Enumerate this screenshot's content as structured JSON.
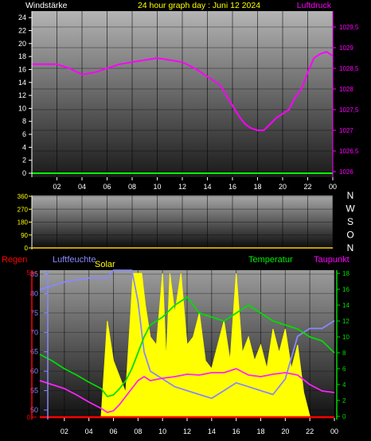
{
  "header": {
    "left": "Windstärke",
    "center": "24 hour graph day : Juni 12 2024",
    "right": "Luftdruck"
  },
  "bottom_header": {
    "regen": "Regen",
    "luftfeuchte": "Luftfeuchte",
    "solar": "Solar",
    "temperatur": "Temperatur",
    "taupunkt": "Taupunkt"
  },
  "dir_labels": [
    "N",
    "W",
    "S",
    "O",
    "N"
  ],
  "colors": {
    "pressure": "#ff00ff",
    "wind": "#00ff00",
    "humidity": "#8888ff",
    "solar": "#ffff00",
    "temperature": "#00dd00",
    "dewpoint": "#ff22ff",
    "rain": "#ff0000",
    "header_text": "#ffff00",
    "axis_text": "#ffffff"
  },
  "chart_data": [
    {
      "type": "line",
      "title": "24 hour graph day : Juni 12 2024",
      "x_ticks": [
        "02",
        "04",
        "06",
        "08",
        "10",
        "12",
        "14",
        "16",
        "18",
        "20",
        "22",
        "00"
      ],
      "y_left_ticks": [
        "0",
        "2",
        "4",
        "6",
        "8",
        "10",
        "12",
        "14",
        "16",
        "18",
        "20",
        "22",
        "24"
      ],
      "y_left_label": "Windstärke",
      "y_left_range": [
        0,
        25
      ],
      "y_right_ticks": [
        "1026",
        "1026,5",
        "1027",
        "1027,5",
        "1028",
        "1028,5",
        "1029",
        "1029,5"
      ],
      "y_right_label": "Luftdruck",
      "y_right_range": [
        1025.9,
        1029.7
      ],
      "series": [
        {
          "name": "Luftdruck",
          "axis": "right",
          "x": [
            0,
            1,
            2,
            3,
            4,
            5,
            6,
            7,
            8,
            9,
            10,
            11,
            12,
            13,
            14,
            15,
            15.5,
            16,
            16.5,
            17,
            17.5,
            18,
            18.5,
            19,
            19.5,
            20,
            20.5,
            21,
            21.5,
            22,
            22.5,
            23,
            23.5,
            24
          ],
          "values": [
            1028.6,
            1028.6,
            1028.6,
            1028.5,
            1028.35,
            1028.4,
            1028.5,
            1028.6,
            1028.65,
            1028.7,
            1028.75,
            1028.7,
            1028.65,
            1028.5,
            1028.3,
            1028.1,
            1027.85,
            1027.6,
            1027.35,
            1027.15,
            1027.05,
            1027.0,
            1027.0,
            1027.15,
            1027.3,
            1027.4,
            1027.5,
            1027.8,
            1028.0,
            1028.4,
            1028.75,
            1028.85,
            1028.9,
            1028.8
          ]
        },
        {
          "name": "Windstärke",
          "axis": "left",
          "x": [
            0,
            24
          ],
          "values": [
            0,
            0
          ]
        }
      ]
    },
    {
      "type": "line",
      "x_ticks": [
        "02",
        "04",
        "06",
        "08",
        "10",
        "12",
        "14",
        "16",
        "18",
        "20",
        "22",
        "00"
      ],
      "y_left_ticks": [
        "0",
        "90",
        "180",
        "270",
        "360"
      ],
      "y_right_labels": [
        "N",
        "W",
        "S",
        "O",
        "N"
      ],
      "series": []
    },
    {
      "type": "line",
      "x_ticks": [
        "02",
        "04",
        "06",
        "08",
        "10",
        "12",
        "14",
        "16",
        "18",
        "20",
        "22",
        "00"
      ],
      "y_left_ticks": [
        "50",
        "55",
        "60",
        "65",
        "70",
        "75",
        "80",
        "85"
      ],
      "y_left_label": "Luftfeuchte",
      "y_left_range": [
        48,
        87
      ],
      "y_right_ticks": [
        "0",
        "2",
        "4",
        "6",
        "8",
        "10",
        "12",
        "14",
        "16",
        "18"
      ],
      "y_right_label": "Temperatur",
      "y_right_range": [
        0,
        18
      ],
      "rain_ticks": [
        "0",
        "5"
      ],
      "series": [
        {
          "name": "Luftfeuchte",
          "axis": "left",
          "x": [
            0,
            1,
            2,
            3,
            4,
            5,
            5.5,
            6,
            7,
            7.5,
            8,
            8.5,
            9,
            10,
            11,
            12,
            13,
            14,
            15,
            16,
            17,
            18,
            19,
            20,
            21,
            22,
            23,
            24
          ],
          "values": [
            81,
            82,
            83,
            83.5,
            84,
            84,
            84,
            86,
            86,
            86,
            78,
            65,
            60,
            58,
            56,
            55,
            54,
            53,
            55,
            57,
            56,
            55,
            54,
            58,
            69,
            71,
            71,
            73
          ]
        },
        {
          "name": "Temperatur",
          "axis": "right",
          "x": [
            0,
            1,
            2,
            3,
            4,
            5,
            5.5,
            6,
            6.5,
            7,
            7.5,
            8,
            8.5,
            9,
            10,
            11,
            12,
            13,
            14,
            15,
            16,
            16.5,
            17,
            18,
            19,
            20,
            21,
            22,
            23,
            24
          ],
          "values": [
            7.8,
            7,
            6,
            5.2,
            4.3,
            3.5,
            2.5,
            2.7,
            3.5,
            4.5,
            6,
            8,
            10,
            11.5,
            12.5,
            14,
            15,
            13,
            12.5,
            12,
            13,
            13.5,
            14,
            13,
            12,
            11.5,
            11,
            10,
            9.5,
            8
          ]
        },
        {
          "name": "Taupunkt",
          "axis": "right",
          "x": [
            0,
            1,
            2,
            3,
            4,
            5,
            5.5,
            6,
            6.5,
            7,
            7.5,
            8,
            8.5,
            9,
            10,
            11,
            12,
            13,
            14,
            15,
            16,
            17,
            18,
            19,
            20,
            21,
            22,
            23,
            24
          ],
          "values": [
            4.5,
            4,
            3.5,
            2.7,
            1.8,
            1,
            0.5,
            0.7,
            1.5,
            2.5,
            3.5,
            4.5,
            5,
            4.5,
            4.8,
            5,
            5.3,
            5.2,
            5.5,
            5.5,
            6,
            5.2,
            5,
            5.3,
            5.5,
            5.2,
            4,
            3.2,
            3
          ]
        },
        {
          "name": "Solar",
          "axis": "right",
          "x": [
            5,
            5.5,
            6,
            6.5,
            7,
            7.2,
            7.6,
            8,
            8.3,
            8.6,
            9,
            9.5,
            10,
            10.3,
            10.6,
            11,
            11.5,
            12,
            12.5,
            13,
            13.5,
            14,
            14.5,
            15,
            15.5,
            16,
            16.5,
            17,
            17.5,
            18,
            18.5,
            19,
            19.5,
            20,
            20.5,
            21,
            21.5,
            22
          ],
          "values": [
            0,
            12,
            7,
            5,
            3,
            8,
            18,
            18,
            18,
            14,
            10,
            9,
            18,
            7,
            18,
            13,
            18,
            9,
            10,
            13,
            7,
            6,
            9,
            12,
            7,
            18,
            8,
            10,
            7,
            9,
            6,
            11,
            8,
            11,
            6,
            9,
            3,
            0
          ]
        },
        {
          "name": "Regen",
          "axis": "rain",
          "x": [
            0,
            24
          ],
          "values": [
            0,
            0
          ]
        }
      ]
    }
  ]
}
